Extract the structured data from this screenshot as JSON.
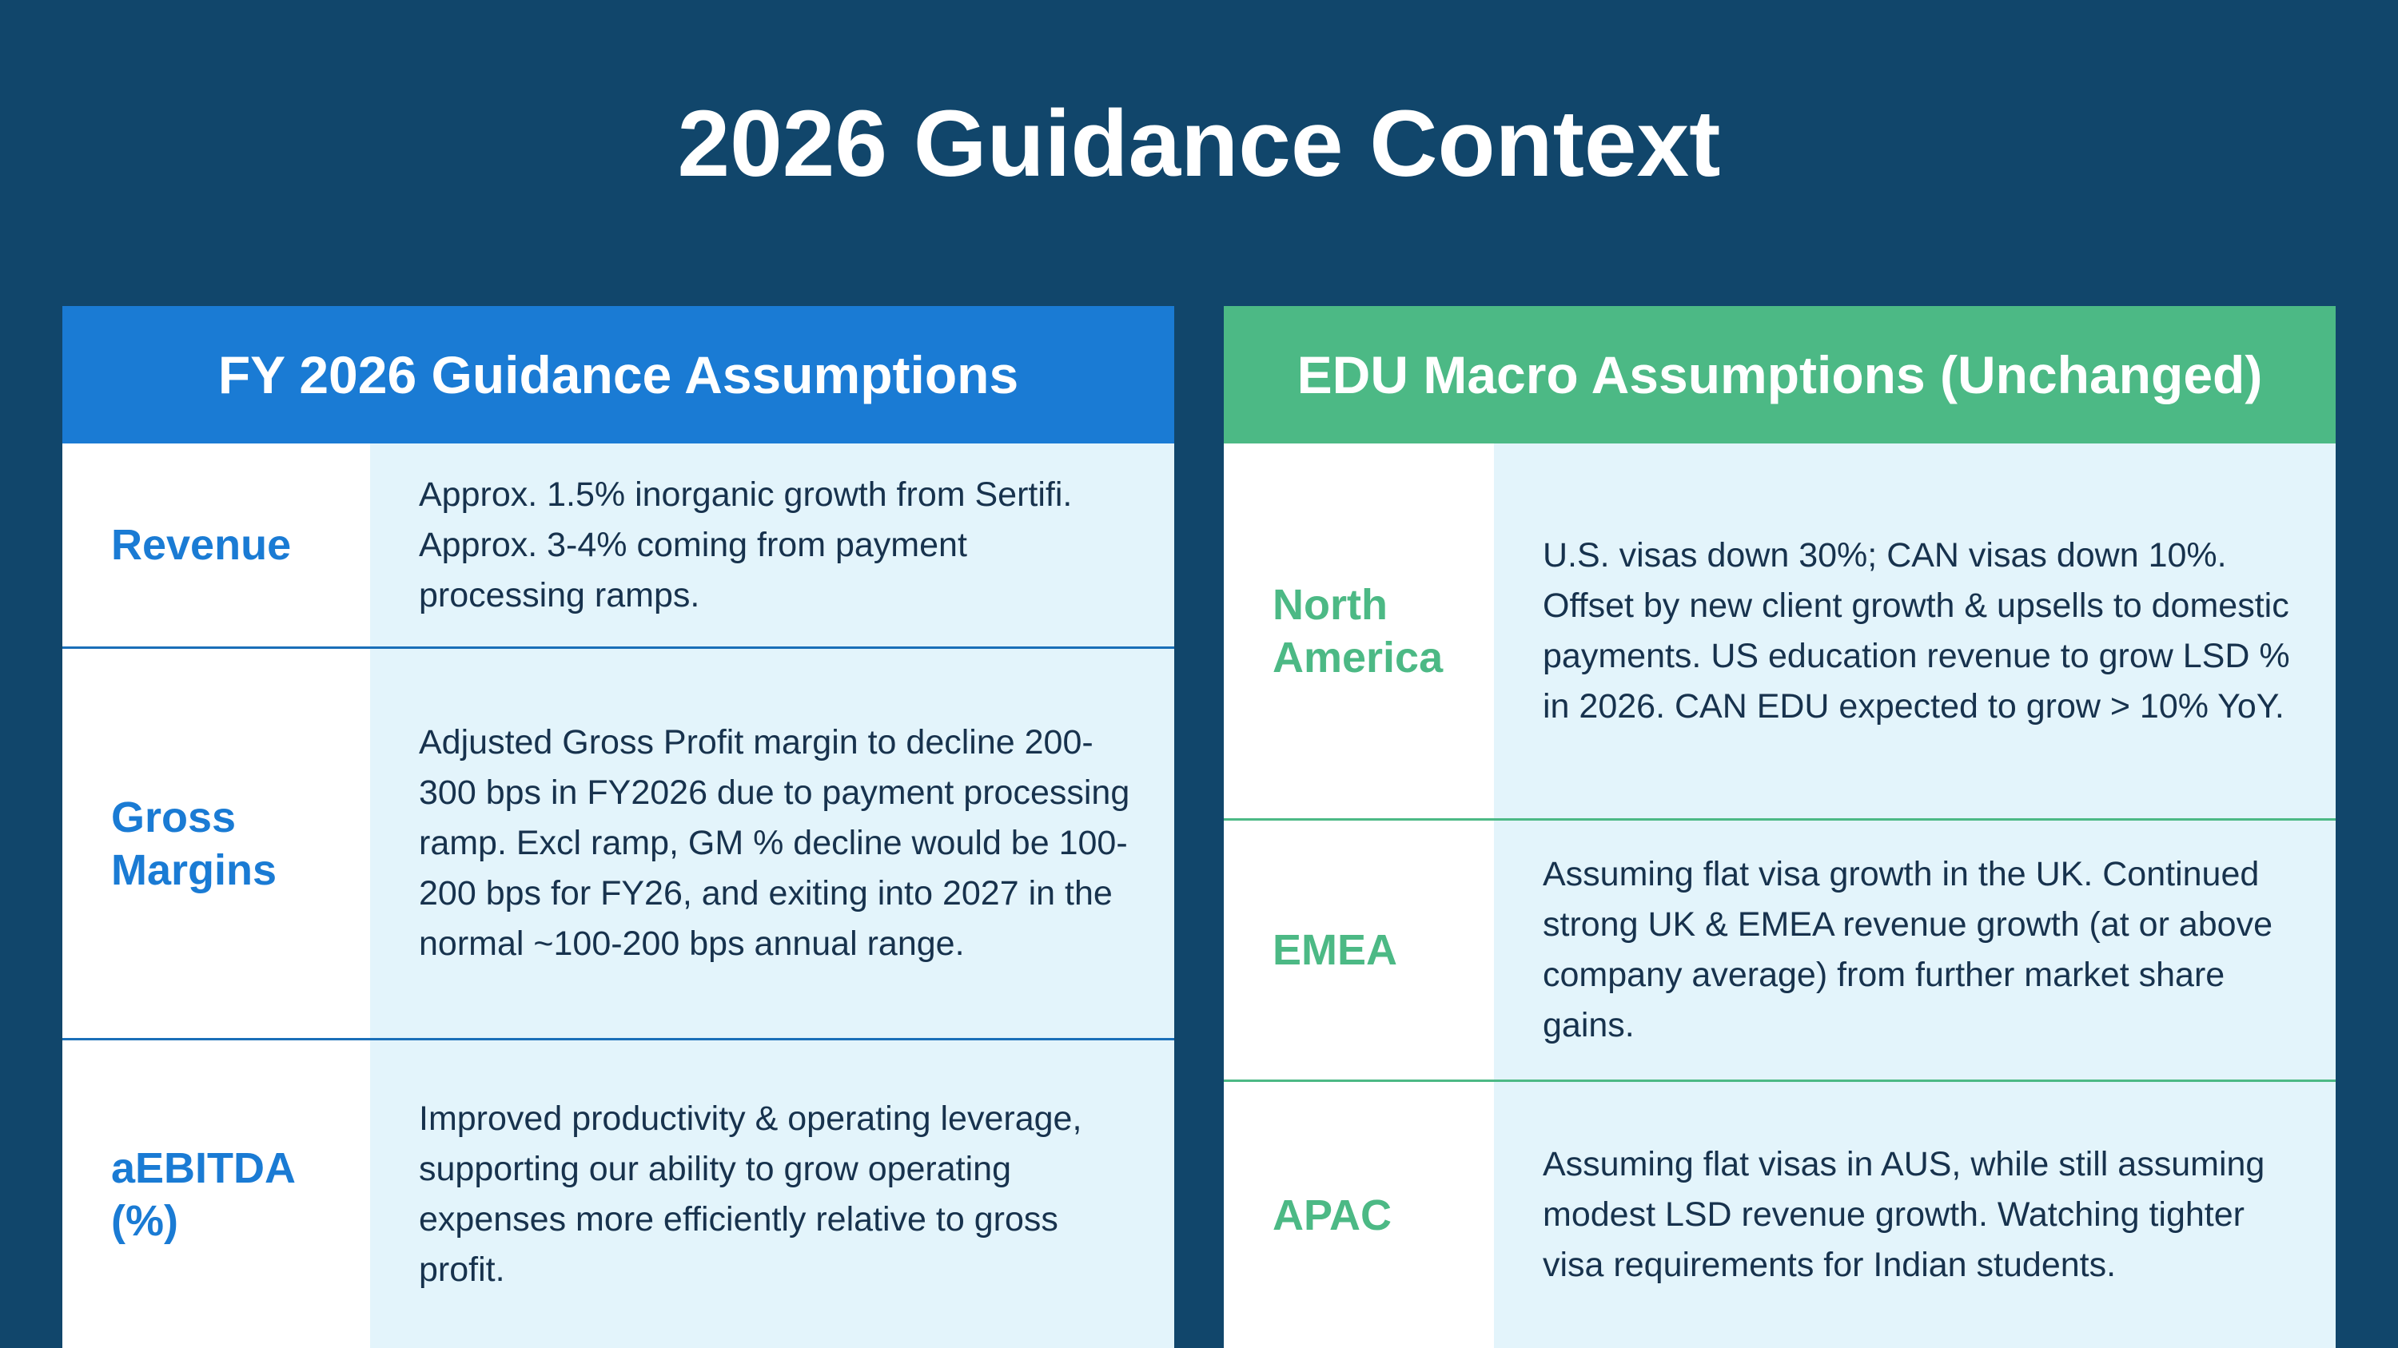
{
  "title": "2026 Guidance Context",
  "panels": [
    {
      "header": "FY 2026 Guidance Assumptions",
      "rows": [
        {
          "label": "Revenue",
          "text": "Approx. 1.5% inorganic growth from Sertifi. Approx. 3-4% coming from payment processing ramps."
        },
        {
          "label": "Gross Margins",
          "text": "Adjusted Gross Profit margin to decline 200-300 bps in FY2026 due to payment processing ramp. Excl ramp, GM % decline would be 100-200 bps for FY26, and exiting into 2027 in the normal ~100-200 bps annual range."
        },
        {
          "label": "aEBITDA (%)",
          "text": "Improved productivity & operating leverage, supporting our ability to grow operating expenses more efficiently relative to gross profit."
        }
      ]
    },
    {
      "header": "EDU Macro Assumptions (Unchanged)",
      "rows": [
        {
          "label": "North America",
          "text": "U.S. visas down 30%; CAN visas down 10%. Offset by new client growth  & upsells to domestic payments.  US education revenue to grow LSD % in 2026. CAN EDU expected to  grow > 10% YoY."
        },
        {
          "label": "EMEA",
          "text": "Assuming flat visa growth in the UK. Continued strong UK & EMEA  revenue growth (at or above company average) from further market share gains."
        },
        {
          "label": "APAC",
          "text": "Assuming flat visas in AUS, while still assuming modest LSD revenue growth. Watching tighter visa requirements for Indian students."
        }
      ]
    }
  ]
}
